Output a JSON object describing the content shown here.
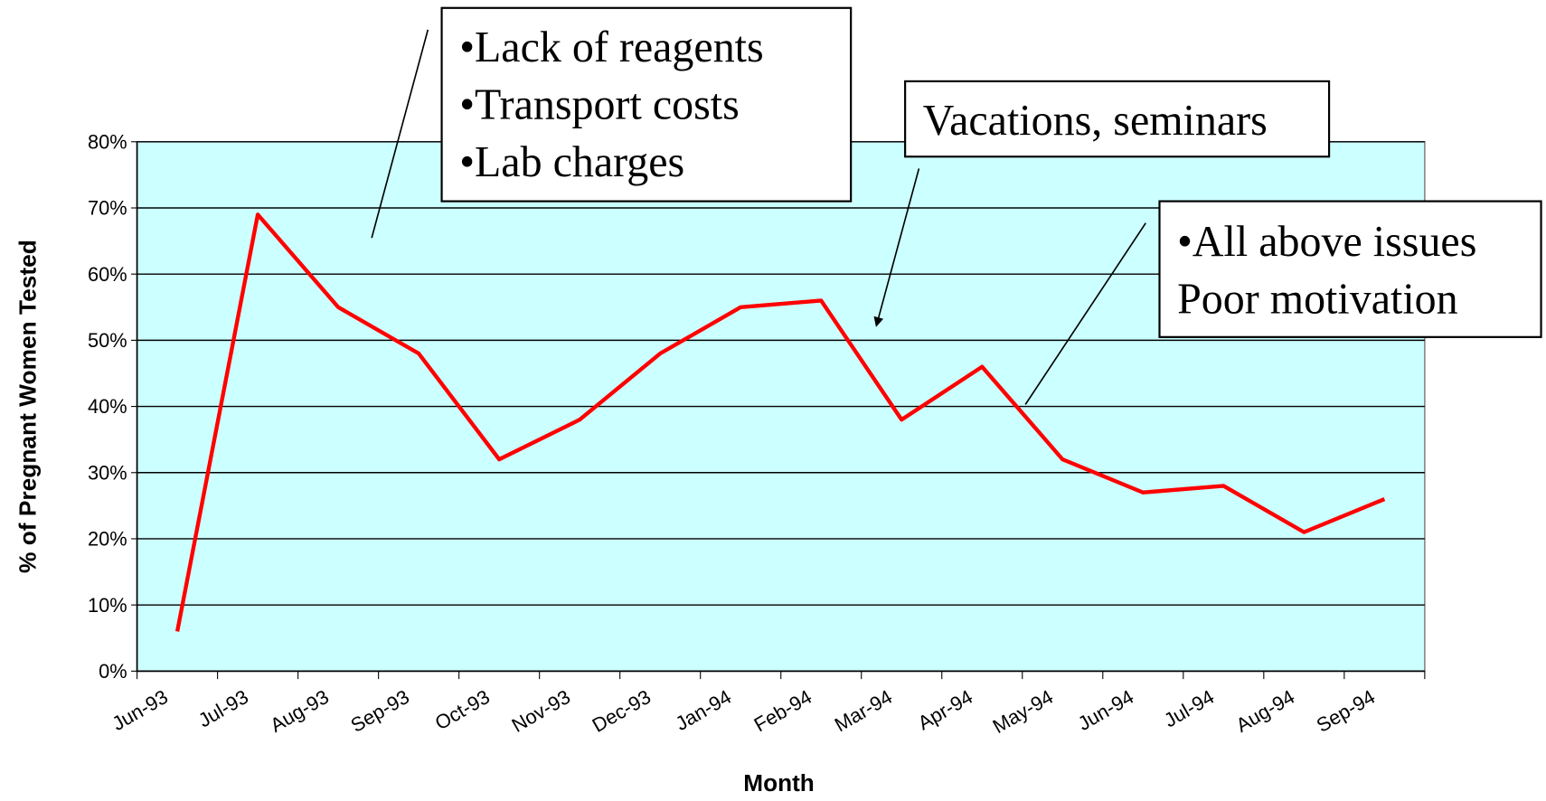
{
  "chart_data": {
    "type": "line",
    "x_label": "Month",
    "y_label": "% of Pregnant Women Tested",
    "categories": [
      "Jun-93",
      "Jul-93",
      "Aug-93",
      "Sep-93",
      "Oct-93",
      "Nov-93",
      "Dec-93",
      "Jan-94",
      "Feb-94",
      "Mar-94",
      "Apr-94",
      "May-94",
      "Jun-94",
      "Jul-94",
      "Aug-94",
      "Sep-94"
    ],
    "series": [
      {
        "color": "#ff0000",
        "values": [
          6,
          69,
          55,
          48,
          32,
          38,
          48,
          55,
          56,
          38,
          46,
          32,
          27,
          28,
          21,
          26
        ]
      }
    ],
    "ylim": [
      0,
      80
    ],
    "yticks": [
      {
        "value": 0,
        "label": "0%"
      },
      {
        "value": 10,
        "label": "10%"
      },
      {
        "value": 20,
        "label": "20%"
      },
      {
        "value": 30,
        "label": "30%"
      },
      {
        "value": 40,
        "label": "40%"
      },
      {
        "value": 50,
        "label": "50%"
      },
      {
        "value": 60,
        "label": "60%"
      },
      {
        "value": 70,
        "label": "70%"
      },
      {
        "value": 80,
        "label": "80%"
      }
    ],
    "grid": true,
    "plot_background": "#ccffff",
    "annotations": [
      {
        "lines": [
          "•Lack of reagents",
          "•Transport costs",
          "•Lab charges"
        ]
      },
      {
        "lines": [
          "Vacations, seminars"
        ]
      },
      {
        "lines": [
          "•All above issues",
          "Poor motivation"
        ]
      }
    ]
  }
}
